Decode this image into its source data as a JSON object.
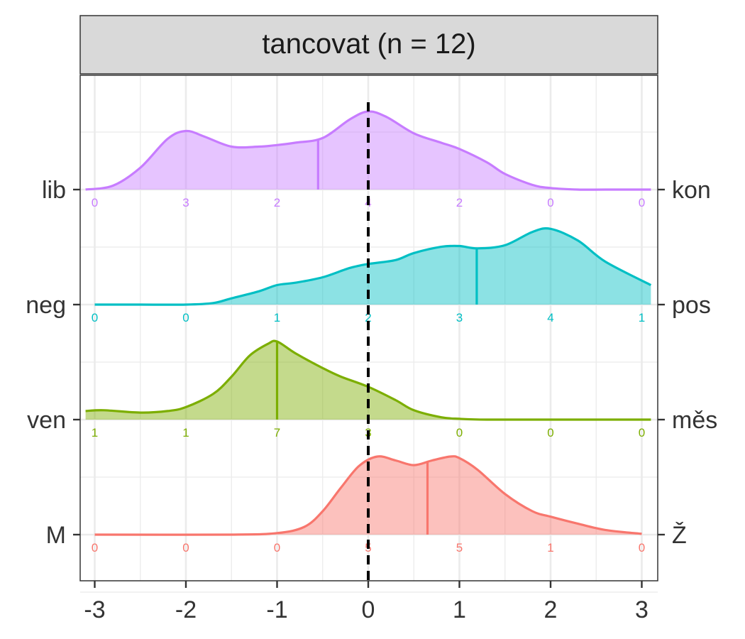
{
  "chart_data": {
    "type": "ridgeline",
    "title": "tancovat (n = 12)",
    "xlim": [
      -3,
      3
    ],
    "x_ticks": [
      "-3",
      "-2",
      "-1",
      "0",
      "1",
      "2",
      "3"
    ],
    "grid": true,
    "reference_line_x": 0,
    "rows": [
      {
        "left_label": "lib",
        "right_label": "kon",
        "color": "#C77CFF",
        "mean": -0.55,
        "counts": [
          "0",
          "3",
          "2",
          "4",
          "2",
          "0",
          "0"
        ],
        "density_x": [
          -3.1,
          -2.8,
          -2.5,
          -2.2,
          -2.0,
          -1.8,
          -1.5,
          -1.2,
          -1.0,
          -0.8,
          -0.5,
          -0.2,
          0.0,
          0.2,
          0.5,
          0.8,
          1.0,
          1.3,
          1.5,
          1.8,
          2.0,
          2.3,
          2.6,
          3.1
        ],
        "density_y": [
          0.0,
          0.05,
          0.28,
          0.65,
          0.75,
          0.68,
          0.55,
          0.55,
          0.57,
          0.6,
          0.66,
          0.9,
          1.0,
          0.93,
          0.72,
          0.6,
          0.52,
          0.35,
          0.2,
          0.06,
          0.02,
          0.0,
          0.0,
          0.0
        ]
      },
      {
        "left_label": "neg",
        "right_label": "pos",
        "color": "#00BFC4",
        "mean": 1.19,
        "counts": [
          "0",
          "0",
          "1",
          "2",
          "3",
          "4",
          "1"
        ],
        "density_x": [
          -3.0,
          -2.5,
          -2.0,
          -1.7,
          -1.5,
          -1.2,
          -1.0,
          -0.8,
          -0.5,
          -0.2,
          0.0,
          0.3,
          0.5,
          0.8,
          1.0,
          1.2,
          1.5,
          1.8,
          2.0,
          2.3,
          2.6,
          3.1
        ],
        "density_y": [
          0.0,
          0.0,
          0.0,
          0.02,
          0.08,
          0.17,
          0.25,
          0.28,
          0.35,
          0.47,
          0.52,
          0.57,
          0.66,
          0.74,
          0.75,
          0.72,
          0.76,
          0.93,
          0.97,
          0.82,
          0.55,
          0.25
        ]
      },
      {
        "left_label": "ven",
        "right_label": "měs",
        "color": "#7CAE00",
        "mean": -1.0,
        "counts": [
          "1",
          "1",
          "7",
          "3",
          "0",
          "0",
          "0"
        ],
        "density_x": [
          -3.1,
          -2.9,
          -2.5,
          -2.2,
          -2.0,
          -1.7,
          -1.5,
          -1.3,
          -1.1,
          -1.0,
          -0.8,
          -0.5,
          -0.3,
          0.0,
          0.3,
          0.5,
          0.8,
          1.0,
          1.3,
          2.0,
          3.1
        ],
        "density_y": [
          0.11,
          0.12,
          0.09,
          0.11,
          0.16,
          0.33,
          0.55,
          0.82,
          0.97,
          1.0,
          0.85,
          0.66,
          0.55,
          0.42,
          0.25,
          0.12,
          0.03,
          0.01,
          0.0,
          0.0,
          0.0
        ],
        "mean_at_peak": true
      },
      {
        "left_label": "M",
        "right_label": "Ž",
        "color": "#F8766D",
        "mean": 0.65,
        "counts": [
          "0",
          "0",
          "0",
          "5",
          "5",
          "1",
          "0"
        ],
        "density_x": [
          -3.0,
          -1.5,
          -1.0,
          -0.7,
          -0.5,
          -0.3,
          -0.1,
          0.1,
          0.3,
          0.5,
          0.7,
          0.9,
          1.0,
          1.2,
          1.5,
          1.8,
          2.0,
          2.3,
          2.6,
          3.0
        ],
        "density_y": [
          0.0,
          0.0,
          0.02,
          0.1,
          0.3,
          0.6,
          0.88,
          1.0,
          0.95,
          0.89,
          0.95,
          1.0,
          0.98,
          0.83,
          0.52,
          0.3,
          0.23,
          0.14,
          0.06,
          0.01
        ]
      }
    ]
  }
}
